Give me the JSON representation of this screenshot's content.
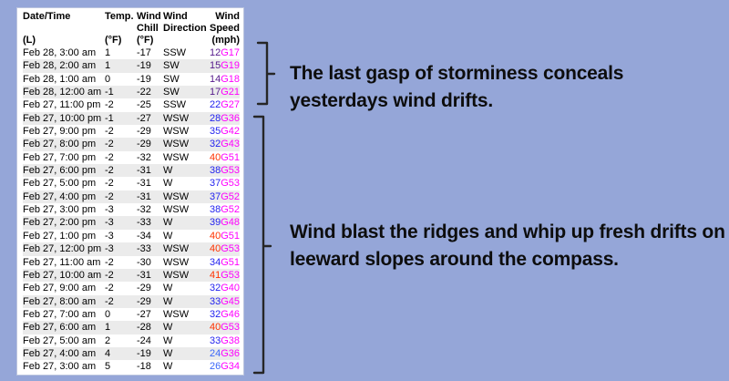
{
  "colors": {
    "background": "#95A6D8",
    "card": "#FFFFFF",
    "stripe": "#EBEBEB",
    "table_text": "#000000",
    "gust": "#FF00FF",
    "speed_purple": "#551A8B",
    "speed_blue": "#2323EF",
    "speed_light_blue": "#3A66F8",
    "speed_red": "#FF3300",
    "bracket": "#262626",
    "annotation_text": "#0D0D0D"
  },
  "table": {
    "header": {
      "columns": [
        {
          "line1": "Date/Time",
          "line2": "",
          "line3": "(L)"
        },
        {
          "line1": "Temp.",
          "line2": "",
          "line3": "(°F)"
        },
        {
          "line1": "Wind",
          "line2": "Chill",
          "line3": "(°F)"
        },
        {
          "line1": "Wind",
          "line2": "Direction",
          "line3": ""
        },
        {
          "line1": "Wind",
          "line2": "Speed",
          "line3": "(mph)"
        }
      ]
    },
    "rows": [
      {
        "date": "Feb 28, 3:00 am",
        "temp": "1",
        "chill": "-17",
        "dir": "SSW",
        "speed": "12",
        "gust": "G17",
        "speed_color": "#551A8B"
      },
      {
        "date": "Feb 28, 2:00 am",
        "temp": "1",
        "chill": "-19",
        "dir": "SW",
        "speed": "15",
        "gust": "G19",
        "speed_color": "#551A8B"
      },
      {
        "date": "Feb 28, 1:00 am",
        "temp": "0",
        "chill": "-19",
        "dir": "SW",
        "speed": "14",
        "gust": "G18",
        "speed_color": "#551A8B"
      },
      {
        "date": "Feb 28, 12:00 am",
        "temp": "-1",
        "chill": "-22",
        "dir": "SW",
        "speed": "17",
        "gust": "G21",
        "speed_color": "#551A8B"
      },
      {
        "date": "Feb 27, 11:00 pm",
        "temp": "-2",
        "chill": "-25",
        "dir": "SSW",
        "speed": "22",
        "gust": "G27",
        "speed_color": "#2323EF"
      },
      {
        "date": "Feb 27, 10:00 pm",
        "temp": "-1",
        "chill": "-27",
        "dir": "WSW",
        "speed": "28",
        "gust": "G36",
        "speed_color": "#2323EF"
      },
      {
        "date": "Feb 27, 9:00 pm",
        "temp": "-2",
        "chill": "-29",
        "dir": "WSW",
        "speed": "35",
        "gust": "G42",
        "speed_color": "#2323EF"
      },
      {
        "date": "Feb 27, 8:00 pm",
        "temp": "-2",
        "chill": "-29",
        "dir": "WSW",
        "speed": "32",
        "gust": "G43",
        "speed_color": "#2323EF"
      },
      {
        "date": "Feb 27, 7:00 pm",
        "temp": "-2",
        "chill": "-32",
        "dir": "WSW",
        "speed": "40",
        "gust": "G51",
        "speed_color": "#FF3300"
      },
      {
        "date": "Feb 27, 6:00 pm",
        "temp": "-2",
        "chill": "-31",
        "dir": "W",
        "speed": "38",
        "gust": "G53",
        "speed_color": "#2323EF"
      },
      {
        "date": "Feb 27, 5:00 pm",
        "temp": "-2",
        "chill": "-31",
        "dir": "W",
        "speed": "37",
        "gust": "G53",
        "speed_color": "#2323EF"
      },
      {
        "date": "Feb 27, 4:00 pm",
        "temp": "-2",
        "chill": "-31",
        "dir": "WSW",
        "speed": "37",
        "gust": "G52",
        "speed_color": "#2323EF"
      },
      {
        "date": "Feb 27, 3:00 pm",
        "temp": "-3",
        "chill": "-32",
        "dir": "WSW",
        "speed": "38",
        "gust": "G52",
        "speed_color": "#2323EF"
      },
      {
        "date": "Feb 27, 2:00 pm",
        "temp": "-3",
        "chill": "-33",
        "dir": "W",
        "speed": "39",
        "gust": "G48",
        "speed_color": "#2323EF"
      },
      {
        "date": "Feb 27, 1:00 pm",
        "temp": "-3",
        "chill": "-34",
        "dir": "W",
        "speed": "40",
        "gust": "G51",
        "speed_color": "#FF3300"
      },
      {
        "date": "Feb 27, 12:00 pm",
        "temp": "-3",
        "chill": "-33",
        "dir": "WSW",
        "speed": "40",
        "gust": "G53",
        "speed_color": "#FF3300"
      },
      {
        "date": "Feb 27, 11:00 am",
        "temp": "-2",
        "chill": "-30",
        "dir": "WSW",
        "speed": "34",
        "gust": "G51",
        "speed_color": "#2323EF"
      },
      {
        "date": "Feb 27, 10:00 am",
        "temp": "-2",
        "chill": "-31",
        "dir": "WSW",
        "speed": "41",
        "gust": "G53",
        "speed_color": "#FF3300"
      },
      {
        "date": "Feb 27, 9:00 am",
        "temp": "-2",
        "chill": "-29",
        "dir": "W",
        "speed": "32",
        "gust": "G40",
        "speed_color": "#2323EF"
      },
      {
        "date": "Feb 27, 8:00 am",
        "temp": "-2",
        "chill": "-29",
        "dir": "W",
        "speed": "33",
        "gust": "G45",
        "speed_color": "#2323EF"
      },
      {
        "date": "Feb 27, 7:00 am",
        "temp": "0",
        "chill": "-27",
        "dir": "WSW",
        "speed": "32",
        "gust": "G46",
        "speed_color": "#2323EF"
      },
      {
        "date": "Feb 27, 6:00 am",
        "temp": "1",
        "chill": "-28",
        "dir": "W",
        "speed": "40",
        "gust": "G53",
        "speed_color": "#FF3300"
      },
      {
        "date": "Feb 27, 5:00 am",
        "temp": "2",
        "chill": "-24",
        "dir": "W",
        "speed": "33",
        "gust": "G38",
        "speed_color": "#2323EF"
      },
      {
        "date": "Feb 27, 4:00 am",
        "temp": "4",
        "chill": "-19",
        "dir": "W",
        "speed": "24",
        "gust": "G36",
        "speed_color": "#3A66F8"
      },
      {
        "date": "Feb 27, 3:00 am",
        "temp": "5",
        "chill": "-18",
        "dir": "W",
        "speed": "26",
        "gust": "G34",
        "speed_color": "#3A66F8"
      }
    ]
  },
  "annotations": {
    "top": {
      "line1": "The last gasp of storminess conceals",
      "line2": "yesterdays wind drifts."
    },
    "bottom": {
      "line1": "Wind blast the ridges and whip up fresh drifts on",
      "line2": "leeward slopes around the compass."
    }
  }
}
